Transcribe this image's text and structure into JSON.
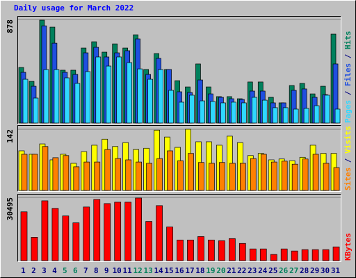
{
  "title": "Daily usage for March 2022",
  "chart_data": [
    {
      "type": "bar",
      "ylim": [
        0,
        878
      ],
      "yticks": [
        878
      ],
      "series": [
        {
          "name": "Hits",
          "color": "#00805c",
          "values": [
            471,
            353,
            872,
            813,
            448,
            448,
            636,
            689,
            601,
            671,
            636,
            748,
            454,
            589,
            454,
            359,
            306,
            501,
            306,
            224,
            224,
            206,
            348,
            348,
            218,
            171,
            318,
            336,
            247,
            312,
            754
          ]
        },
        {
          "name": "Files",
          "color": "#1f4fe0",
          "values": [
            430,
            312,
            824,
            677,
            430,
            412,
            595,
            642,
            560,
            595,
            613,
            713,
            412,
            548,
            454,
            265,
            259,
            365,
            247,
            218,
            206,
            200,
            271,
            271,
            171,
            171,
            277,
            289,
            218,
            241,
            501
          ]
        },
        {
          "name": "Pages",
          "color": "#2fd8ff",
          "values": [
            371,
            212,
            453,
            453,
            383,
            336,
            436,
            560,
            483,
            560,
            512,
            459,
            371,
            453,
            277,
            177,
            236,
            188,
            183,
            171,
            177,
            171,
            218,
            194,
            130,
            130,
            118,
            124,
            147,
            236,
            118
          ]
        }
      ]
    },
    {
      "type": "bar",
      "ylim": [
        0,
        142
      ],
      "yticks": [
        142
      ],
      "series": [
        {
          "name": "Visits",
          "color": "#ffff00",
          "values": [
            92,
            84,
            108,
            71,
            84,
            63,
            90,
            105,
            119,
            102,
            111,
            95,
            98,
            140,
            124,
            100,
            142,
            113,
            113,
            105,
            126,
            111,
            81,
            86,
            71,
            73,
            69,
            77,
            105,
            86,
            86
          ]
        },
        {
          "name": "Sites",
          "color": "#ff8000",
          "values": [
            84,
            84,
            102,
            76,
            81,
            55,
            66,
            66,
            95,
            74,
            71,
            66,
            63,
            74,
            92,
            69,
            86,
            65,
            63,
            65,
            63,
            63,
            74,
            84,
            66,
            68,
            61,
            73,
            84,
            63,
            53
          ]
        }
      ]
    },
    {
      "type": "bar",
      "ylim": [
        0,
        30495
      ],
      "yticks": [
        30495
      ],
      "categories": [
        "1",
        "2",
        "3",
        "4",
        "5",
        "6",
        "7",
        "8",
        "9",
        "10",
        "11",
        "12",
        "13",
        "14",
        "15",
        "16",
        "17",
        "18",
        "19",
        "20",
        "21",
        "22",
        "23",
        "24",
        "25",
        "26",
        "27",
        "28",
        "29",
        "30",
        "31"
      ],
      "category_colors": [
        "#000080",
        "#000080",
        "#000080",
        "#000080",
        "#00805c",
        "#00805c",
        "#000080",
        "#000080",
        "#000080",
        "#000080",
        "#000080",
        "#00805c",
        "#00805c",
        "#000080",
        "#000080",
        "#000080",
        "#000080",
        "#000080",
        "#00805c",
        "#00805c",
        "#000080",
        "#000080",
        "#000080",
        "#000080",
        "#000080",
        "#00805c",
        "#00805c",
        "#000080",
        "#000080",
        "#000080",
        "#000080"
      ],
      "series": [
        {
          "name": "KBytes",
          "color": "#ff0000",
          "values": [
            23530,
            11270,
            28840,
            25190,
            21550,
            18230,
            25860,
            29500,
            27510,
            28180,
            28180,
            30170,
            18900,
            26520,
            16240,
            9950,
            9950,
            11600,
            9950,
            9610,
            10610,
            8290,
            5640,
            5640,
            2980,
            5640,
            4640,
            5300,
            5300,
            5300,
            6630
          ]
        }
      ]
    }
  ]
}
